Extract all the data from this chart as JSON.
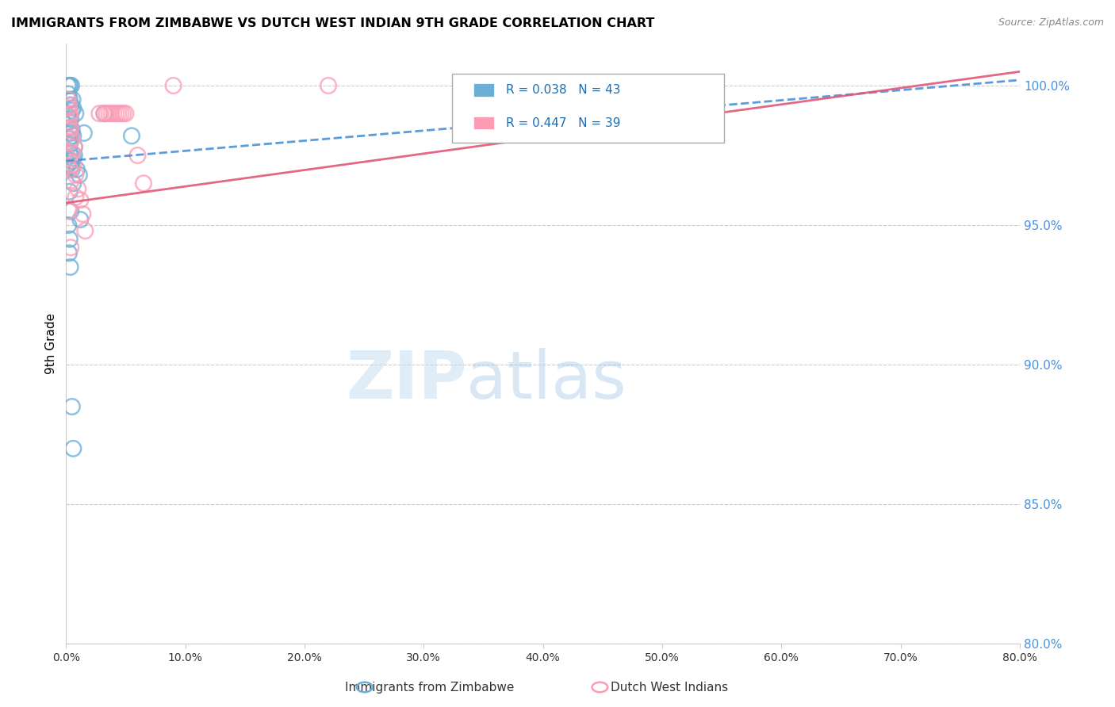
{
  "title": "IMMIGRANTS FROM ZIMBABWE VS DUTCH WEST INDIAN 9TH GRADE CORRELATION CHART",
  "source": "Source: ZipAtlas.com",
  "ylabel": "9th Grade",
  "xlim": [
    0.0,
    80.0
  ],
  "ylim": [
    80.0,
    101.5
  ],
  "yticks": [
    80.0,
    85.0,
    90.0,
    95.0,
    100.0
  ],
  "xticks": [
    0.0,
    10.0,
    20.0,
    30.0,
    40.0,
    50.0,
    60.0,
    70.0,
    80.0
  ],
  "blue_R": 0.038,
  "blue_N": 43,
  "pink_R": 0.447,
  "pink_N": 39,
  "blue_color": "#6baed6",
  "pink_color": "#fc9cb4",
  "trend_blue_color": "#4a90d9",
  "trend_pink_color": "#e05878",
  "watermark_zip": "ZIP",
  "watermark_atlas": "atlas",
  "legend_label_blue": "Immigrants from Zimbabwe",
  "legend_label_pink": "Dutch West Indians",
  "blue_trend_x": [
    0.0,
    80.0
  ],
  "blue_trend_y": [
    97.3,
    100.2
  ],
  "pink_trend_x": [
    0.0,
    80.0
  ],
  "pink_trend_y": [
    95.8,
    100.5
  ],
  "blue_scatter_x": [
    0.15,
    0.25,
    0.35,
    0.45,
    0.2,
    0.3,
    0.4,
    0.5,
    0.15,
    0.25,
    0.35,
    0.45,
    0.2,
    0.3,
    0.55,
    0.6,
    0.4,
    0.5,
    0.3,
    0.2,
    0.8,
    0.6,
    0.7,
    1.5,
    0.9,
    1.1,
    0.7,
    0.5,
    0.6,
    0.4,
    0.3,
    0.4,
    3.2,
    0.2,
    0.3,
    0.6,
    0.5,
    5.5,
    0.25,
    0.35,
    1.2,
    0.5,
    0.6
  ],
  "blue_scatter_y": [
    100.0,
    100.0,
    100.0,
    100.0,
    99.7,
    99.5,
    99.3,
    99.1,
    98.9,
    98.7,
    98.5,
    98.3,
    98.1,
    97.9,
    99.5,
    99.2,
    98.8,
    98.4,
    97.6,
    97.2,
    99.0,
    98.2,
    97.5,
    98.3,
    97.0,
    96.8,
    97.8,
    97.3,
    96.5,
    97.1,
    96.2,
    95.5,
    99.0,
    95.0,
    94.5,
    97.4,
    97.0,
    98.2,
    94.0,
    93.5,
    95.2,
    88.5,
    87.0
  ],
  "pink_scatter_x": [
    0.15,
    0.25,
    0.35,
    2.8,
    3.2,
    3.4,
    3.6,
    3.8,
    4.0,
    4.2,
    4.4,
    4.6,
    4.8,
    5.0,
    0.2,
    0.3,
    0.4,
    0.5,
    0.6,
    0.8,
    1.0,
    1.2,
    1.4,
    1.6,
    0.3,
    0.4,
    0.5,
    0.7,
    9.0,
    0.2,
    0.35,
    0.45,
    0.8,
    0.25,
    0.4,
    6.0,
    6.5,
    0.2,
    22.0
  ],
  "pink_scatter_y": [
    99.5,
    99.3,
    99.0,
    99.0,
    99.0,
    99.0,
    99.0,
    99.0,
    99.0,
    99.0,
    99.0,
    99.0,
    99.0,
    99.0,
    98.7,
    98.4,
    98.0,
    97.6,
    97.2,
    96.8,
    96.3,
    95.9,
    95.4,
    94.8,
    98.9,
    98.5,
    98.1,
    97.8,
    100.0,
    97.4,
    97.0,
    96.6,
    96.0,
    95.5,
    94.2,
    97.5,
    96.5,
    99.2,
    100.0
  ]
}
